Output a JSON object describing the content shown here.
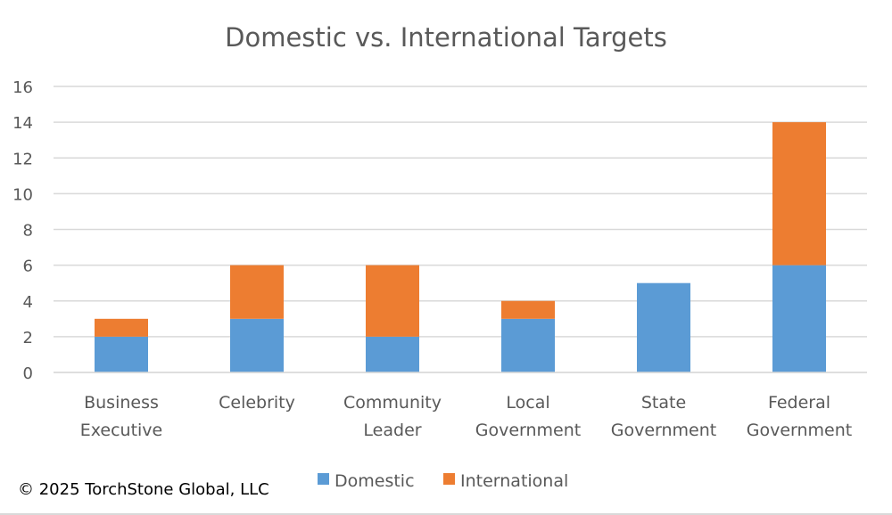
{
  "chart_data": {
    "type": "bar",
    "stacked": true,
    "title": "Domestic vs. International Targets",
    "categories": [
      [
        "Business",
        "Executive"
      ],
      [
        "Celebrity"
      ],
      [
        "Community",
        "Leader"
      ],
      [
        "Local",
        "Government"
      ],
      [
        "State",
        "Government"
      ],
      [
        "Federal",
        "Government"
      ]
    ],
    "series": [
      {
        "name": "Domestic",
        "color": "#5b9bd5",
        "values": [
          2,
          3,
          2,
          3,
          5,
          6
        ]
      },
      {
        "name": "International",
        "color": "#ed7d31",
        "values": [
          1,
          3,
          4,
          1,
          0,
          8
        ]
      }
    ],
    "ylim": [
      0,
      16
    ],
    "yticks": [
      0,
      2,
      4,
      6,
      8,
      10,
      12,
      14,
      16
    ],
    "grid": true,
    "legend": "bottom",
    "xlabel": "",
    "ylabel": ""
  },
  "footer": {
    "copyright": "© 2025 TorchStone Global, LLC"
  }
}
